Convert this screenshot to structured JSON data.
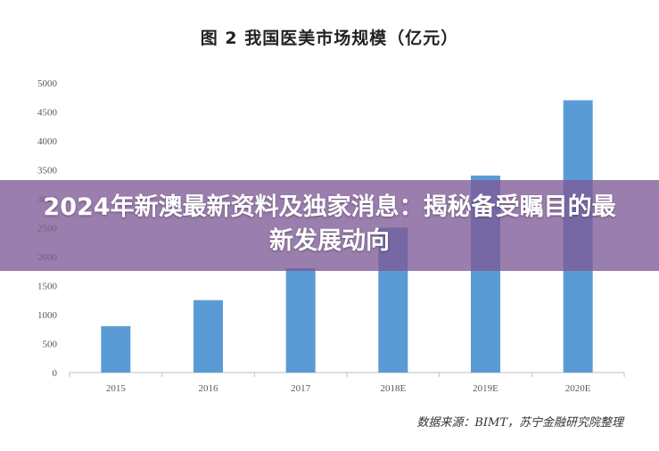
{
  "headline": "2024年新澳最新资料及独家消息：揭秘备受瞩目的最新发展动向",
  "source": "数据来源：BIMT，苏宁金融研究院整理",
  "colors": {
    "bar": "#5b9bd5",
    "axis": "#bfbfbf",
    "tick_text": "#595959",
    "overlay": "#7d5a96"
  },
  "chart_data": {
    "type": "bar",
    "title": "图 2    我国医美市场规模（亿元）",
    "categories": [
      "2015",
      "2016",
      "2017",
      "2018E",
      "2019E",
      "2020E"
    ],
    "values": [
      800,
      1250,
      1800,
      2500,
      3400,
      4700
    ],
    "ylim": [
      0,
      5000
    ],
    "yticks": [
      0,
      500,
      1000,
      1500,
      2000,
      2500,
      3000,
      3500,
      4000,
      4500,
      5000
    ],
    "xlabel": "",
    "ylabel": "",
    "grid": false,
    "legend": "none"
  }
}
